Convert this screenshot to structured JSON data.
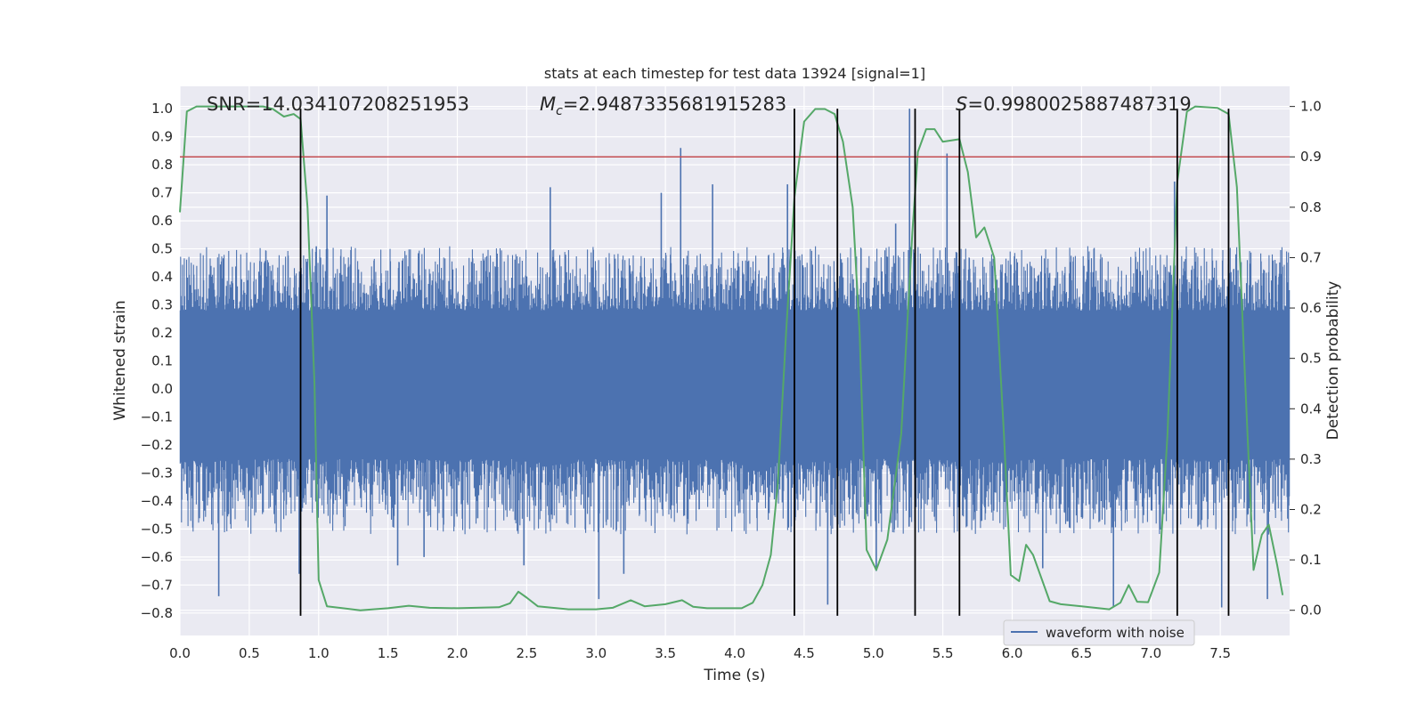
{
  "chart_data": {
    "type": "line",
    "title": "stats at each timestep for test data 13924 [signal=1]",
    "xlabel": "Time (s)",
    "ylabel": "Whitened strain",
    "ylabel_right": "Detection probability",
    "xlim": [
      0,
      8
    ],
    "ylim": [
      -0.88,
      1.08
    ],
    "ylim_right": [
      -0.05,
      1.04
    ],
    "x_ticks": [
      0.0,
      0.5,
      1.0,
      1.5,
      2.0,
      2.5,
      3.0,
      3.5,
      4.0,
      4.5,
      5.0,
      5.5,
      6.0,
      6.5,
      7.0,
      7.5
    ],
    "x_tick_labels": [
      "0.0",
      "0.5",
      "1.0",
      "1.5",
      "2.0",
      "2.5",
      "3.0",
      "3.5",
      "4.0",
      "4.5",
      "5.0",
      "5.5",
      "6.0",
      "6.5",
      "7.0",
      "7.5"
    ],
    "y_ticks": [
      -0.8,
      -0.7,
      -0.6,
      -0.5,
      -0.4,
      -0.3,
      -0.2,
      -0.1,
      0.0,
      0.1,
      0.2,
      0.3,
      0.4,
      0.5,
      0.6,
      0.7,
      0.8,
      0.9,
      1.0
    ],
    "y_tick_labels": [
      "−0.8",
      "−0.7",
      "−0.6",
      "−0.5",
      "−0.4",
      "−0.3",
      "−0.2",
      "−0.1",
      "0.0",
      "0.1",
      "0.2",
      "0.3",
      "0.4",
      "0.5",
      "0.6",
      "0.7",
      "0.8",
      "0.9",
      "1.0"
    ],
    "y_right_ticks": [
      0.0,
      0.1,
      0.2,
      0.3,
      0.4,
      0.5,
      0.6,
      0.7,
      0.8,
      0.9,
      1.0
    ],
    "y_right_tick_labels": [
      "0.0",
      "0.1",
      "0.2",
      "0.3",
      "0.4",
      "0.5",
      "0.6",
      "0.7",
      "0.8",
      "0.9",
      "1.0"
    ],
    "annotations": {
      "snr": "SNR=14.034107208251953",
      "mc_symbol": "M",
      "mc_sub": "c",
      "mc_value": "=2.9487335681915283",
      "s_symbol": "S",
      "s_value": "=0.9980025887487319"
    },
    "legend": {
      "label": "waveform with noise",
      "location": "lower-right"
    },
    "threshold": {
      "value": 0.9,
      "axis": "right",
      "color": "#c44e52"
    },
    "vertical_lines": [
      0.87,
      4.43,
      4.74,
      5.3,
      5.62,
      7.19,
      7.56
    ],
    "vertical_line_range": [
      -0.8,
      1.0
    ],
    "waveform": {
      "name": "waveform with noise",
      "color": "#4c72b0",
      "core_band": [
        -0.25,
        0.28
      ],
      "typical_envelope": [
        -0.45,
        0.45
      ],
      "spikes": [
        {
          "t": 0.28,
          "v": -0.74
        },
        {
          "t": 0.86,
          "v": -0.66
        },
        {
          "t": 1.06,
          "v": 0.69
        },
        {
          "t": 1.57,
          "v": -0.63
        },
        {
          "t": 1.76,
          "v": -0.6
        },
        {
          "t": 2.48,
          "v": -0.63
        },
        {
          "t": 2.67,
          "v": 0.72
        },
        {
          "t": 3.02,
          "v": -0.75
        },
        {
          "t": 3.2,
          "v": -0.66
        },
        {
          "t": 3.47,
          "v": 0.7
        },
        {
          "t": 3.61,
          "v": 0.86
        },
        {
          "t": 3.84,
          "v": 0.73
        },
        {
          "t": 4.38,
          "v": 0.73
        },
        {
          "t": 4.67,
          "v": -0.77
        },
        {
          "t": 5.02,
          "v": -0.65
        },
        {
          "t": 5.16,
          "v": 0.59
        },
        {
          "t": 5.26,
          "v": 1.0
        },
        {
          "t": 5.53,
          "v": 0.84
        },
        {
          "t": 6.22,
          "v": -0.64
        },
        {
          "t": 6.73,
          "v": -0.78
        },
        {
          "t": 7.17,
          "v": 0.74
        },
        {
          "t": 7.51,
          "v": -0.78
        },
        {
          "t": 7.84,
          "v": -0.75
        }
      ]
    },
    "detection_probability": {
      "name": "detection probability",
      "color": "#55a868",
      "axis": "right",
      "points": [
        [
          0.0,
          0.79
        ],
        [
          0.05,
          0.99
        ],
        [
          0.12,
          1.0
        ],
        [
          0.3,
          1.0
        ],
        [
          0.6,
          1.0
        ],
        [
          0.67,
          0.995
        ],
        [
          0.75,
          0.98
        ],
        [
          0.82,
          0.985
        ],
        [
          0.87,
          0.975
        ],
        [
          0.92,
          0.8
        ],
        [
          0.97,
          0.45
        ],
        [
          1.0,
          0.06
        ],
        [
          1.06,
          0.008
        ],
        [
          1.3,
          0.0
        ],
        [
          1.5,
          0.004
        ],
        [
          1.65,
          0.009
        ],
        [
          1.8,
          0.005
        ],
        [
          2.0,
          0.004
        ],
        [
          2.3,
          0.006
        ],
        [
          2.38,
          0.014
        ],
        [
          2.44,
          0.037
        ],
        [
          2.5,
          0.025
        ],
        [
          2.58,
          0.008
        ],
        [
          2.8,
          0.002
        ],
        [
          3.0,
          0.002
        ],
        [
          3.12,
          0.005
        ],
        [
          3.25,
          0.02
        ],
        [
          3.35,
          0.008
        ],
        [
          3.5,
          0.012
        ],
        [
          3.62,
          0.02
        ],
        [
          3.7,
          0.007
        ],
        [
          3.8,
          0.004
        ],
        [
          4.05,
          0.004
        ],
        [
          4.13,
          0.015
        ],
        [
          4.2,
          0.05
        ],
        [
          4.26,
          0.11
        ],
        [
          4.31,
          0.25
        ],
        [
          4.37,
          0.55
        ],
        [
          4.43,
          0.82
        ],
        [
          4.5,
          0.97
        ],
        [
          4.58,
          0.995
        ],
        [
          4.65,
          0.995
        ],
        [
          4.72,
          0.985
        ],
        [
          4.78,
          0.93
        ],
        [
          4.85,
          0.8
        ],
        [
          4.9,
          0.55
        ],
        [
          4.95,
          0.12
        ],
        [
          5.02,
          0.08
        ],
        [
          5.1,
          0.14
        ],
        [
          5.2,
          0.35
        ],
        [
          5.28,
          0.75
        ],
        [
          5.32,
          0.91
        ],
        [
          5.38,
          0.955
        ],
        [
          5.44,
          0.955
        ],
        [
          5.5,
          0.93
        ],
        [
          5.62,
          0.935
        ],
        [
          5.68,
          0.87
        ],
        [
          5.74,
          0.74
        ],
        [
          5.8,
          0.76
        ],
        [
          5.87,
          0.7
        ],
        [
          5.94,
          0.35
        ],
        [
          5.99,
          0.07
        ],
        [
          6.05,
          0.058
        ],
        [
          6.1,
          0.13
        ],
        [
          6.15,
          0.11
        ],
        [
          6.27,
          0.018
        ],
        [
          6.35,
          0.012
        ],
        [
          6.5,
          0.008
        ],
        [
          6.7,
          0.002
        ],
        [
          6.78,
          0.015
        ],
        [
          6.84,
          0.05
        ],
        [
          6.9,
          0.017
        ],
        [
          6.98,
          0.016
        ],
        [
          7.06,
          0.075
        ],
        [
          7.12,
          0.35
        ],
        [
          7.19,
          0.85
        ],
        [
          7.26,
          0.99
        ],
        [
          7.32,
          1.0
        ],
        [
          7.48,
          0.997
        ],
        [
          7.56,
          0.985
        ],
        [
          7.62,
          0.84
        ],
        [
          7.68,
          0.45
        ],
        [
          7.74,
          0.08
        ],
        [
          7.8,
          0.15
        ],
        [
          7.85,
          0.17
        ],
        [
          7.91,
          0.09
        ],
        [
          7.95,
          0.03
        ]
      ]
    }
  }
}
